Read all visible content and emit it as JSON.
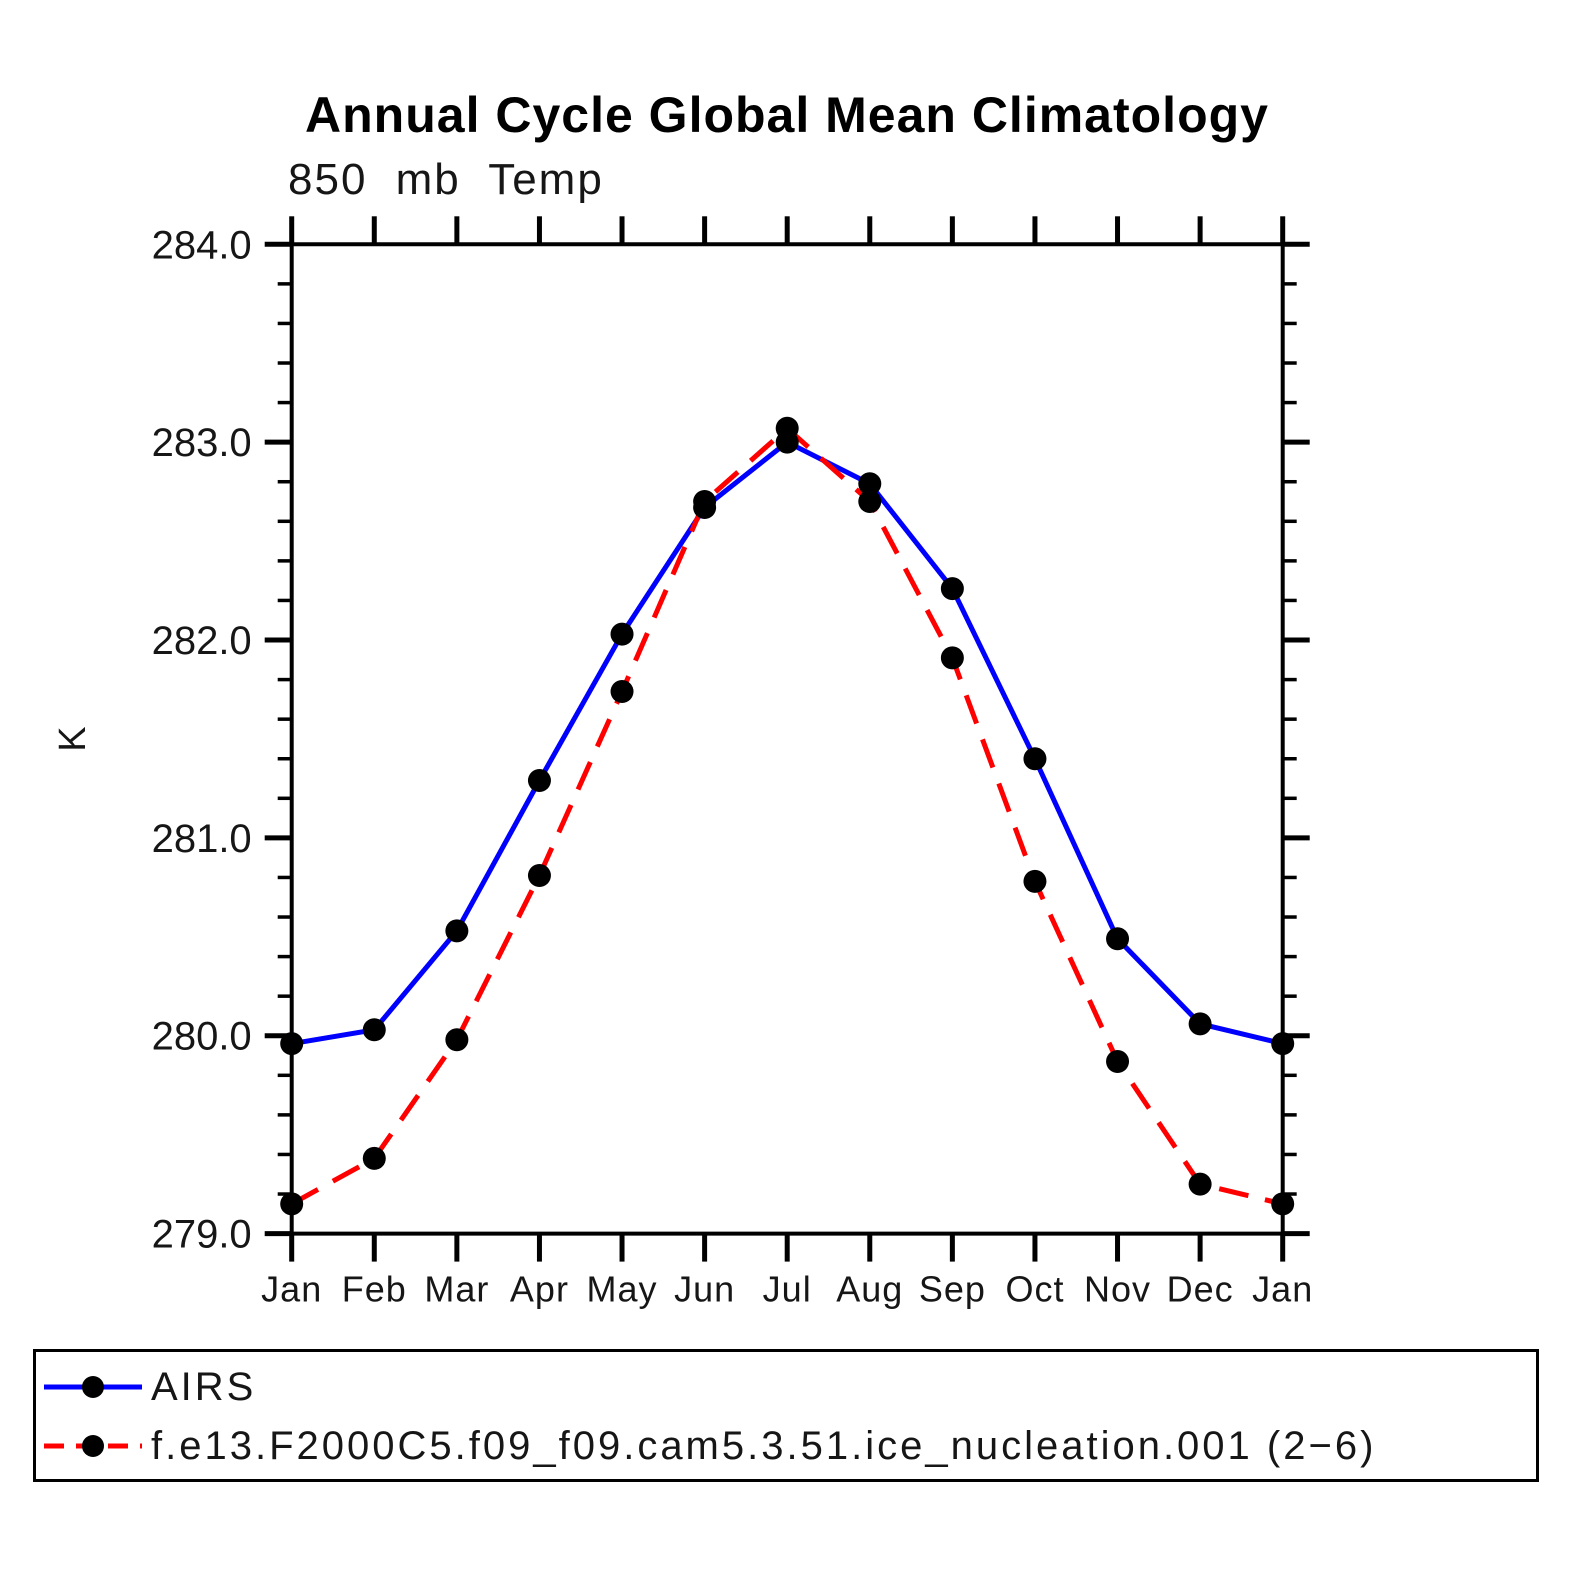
{
  "page": {
    "background": "#ffffff"
  },
  "chart_data": {
    "type": "line",
    "title": "Annual Cycle Global Mean Climatology",
    "subtitle": "850 mb Temp",
    "ylabel": "K",
    "xlabel": "",
    "x_tick_labels": [
      "Jan",
      "Feb",
      "Mar",
      "Apr",
      "May",
      "Jun",
      "Jul",
      "Aug",
      "Sep",
      "Oct",
      "Nov",
      "Dec",
      "Jan"
    ],
    "y_ticks": [
      279.0,
      280.0,
      281.0,
      282.0,
      283.0,
      284.0
    ],
    "y_tick_labels": [
      "279.0",
      "280.0",
      "281.0",
      "282.0",
      "283.0",
      "284.0"
    ],
    "ylim": [
      279.0,
      284.0
    ],
    "y_minor_tick_step": 0.2,
    "grid": false,
    "axis_color": "#000000",
    "legend_position": "bottom-left-box",
    "series": [
      {
        "name": "AIRS",
        "color": "#0000ff",
        "line_style": "solid",
        "marker": "circle",
        "marker_color": "#000000",
        "values": [
          279.96,
          280.03,
          280.53,
          281.29,
          282.03,
          282.67,
          283.0,
          282.79,
          282.26,
          281.4,
          280.49,
          280.06,
          279.96
        ]
      },
      {
        "name": "f.e13.F2000C5.f09_f09.cam5.3.51.ice_nucleation.001 (2−6)",
        "color": "#ff0000",
        "line_style": "dashed",
        "marker": "circle",
        "marker_color": "#000000",
        "values": [
          279.15,
          279.38,
          279.98,
          280.81,
          281.74,
          282.7,
          283.07,
          282.7,
          281.91,
          280.78,
          279.87,
          279.25,
          279.15
        ]
      }
    ]
  }
}
